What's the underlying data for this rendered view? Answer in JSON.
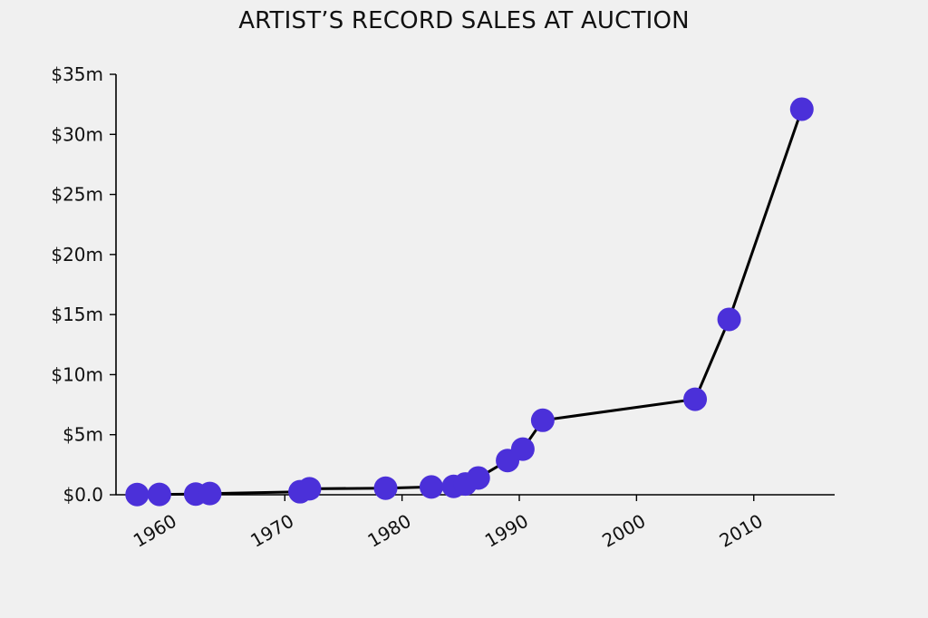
{
  "chart_data": {
    "type": "line",
    "title": "ARTIST’S RECORD SALES AT AUCTION",
    "xlabel": "",
    "ylabel": "",
    "xlim": [
      1955.6,
      2016.9
    ],
    "ylim": [
      0,
      35
    ],
    "x_ticks": [
      {
        "value": 1960,
        "label": "1960"
      },
      {
        "value": 1970,
        "label": "1970"
      },
      {
        "value": 1980,
        "label": "1980"
      },
      {
        "value": 1990,
        "label": "1990"
      },
      {
        "value": 2000,
        "label": "2000"
      },
      {
        "value": 2010,
        "label": "2010"
      }
    ],
    "y_ticks": [
      {
        "value": 0,
        "label": "$0.0"
      },
      {
        "value": 5,
        "label": "$5m"
      },
      {
        "value": 10,
        "label": "$10m"
      },
      {
        "value": 15,
        "label": "$15m"
      },
      {
        "value": 20,
        "label": "$20m"
      },
      {
        "value": 25,
        "label": "$25m"
      },
      {
        "value": 30,
        "label": "$30m"
      },
      {
        "value": 35,
        "label": "$35m"
      }
    ],
    "series": [
      {
        "points": [
          {
            "x": 1957.4,
            "y": 0.02
          },
          {
            "x": 1959.3,
            "y": 0.03
          },
          {
            "x": 1962.4,
            "y": 0.06
          },
          {
            "x": 1963.6,
            "y": 0.1
          },
          {
            "x": 1971.3,
            "y": 0.25
          },
          {
            "x": 1972.1,
            "y": 0.5
          },
          {
            "x": 1978.6,
            "y": 0.55
          },
          {
            "x": 1982.5,
            "y": 0.65
          },
          {
            "x": 1984.4,
            "y": 0.7
          },
          {
            "x": 1985.4,
            "y": 0.9
          },
          {
            "x": 1986.5,
            "y": 1.4
          },
          {
            "x": 1989.0,
            "y": 2.85
          },
          {
            "x": 1990.3,
            "y": 3.8
          },
          {
            "x": 1992.0,
            "y": 6.2
          },
          {
            "x": 2005.0,
            "y": 7.95
          },
          {
            "x": 2007.9,
            "y": 14.6
          },
          {
            "x": 2014.1,
            "y": 32.1
          }
        ]
      }
    ],
    "colors": {
      "line": "#000000",
      "marker": "#4b30d9",
      "background": "#f0f0f0"
    },
    "grid": false,
    "legend": "none"
  }
}
